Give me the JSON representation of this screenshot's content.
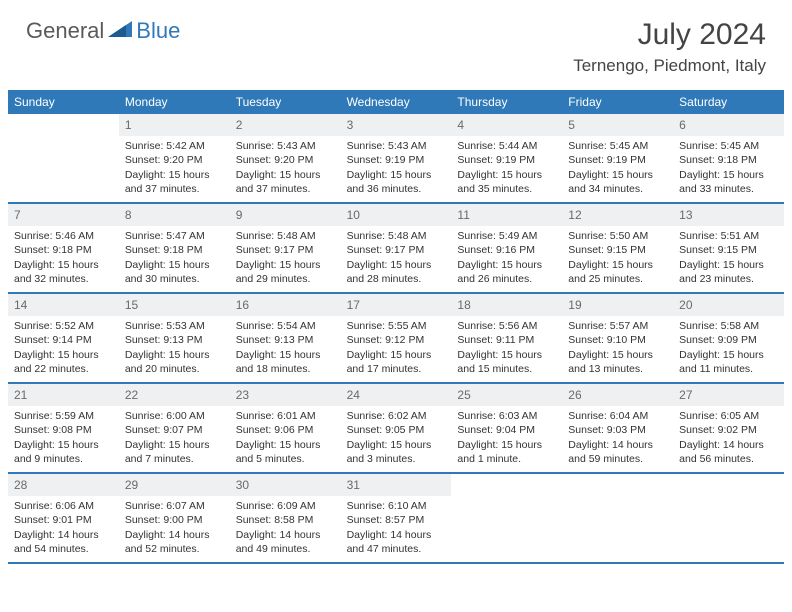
{
  "logo": {
    "general": "General",
    "blue": "Blue"
  },
  "title": "July 2024",
  "location": "Ternengo, Piedmont, Italy",
  "colors": {
    "header_bg": "#2f79b9",
    "header_text": "#ffffff",
    "daynum_bg": "#eef0f2",
    "daynum_text": "#6a6a6a",
    "body_text": "#333333",
    "rule": "#2f79b9"
  },
  "dayNames": [
    "Sunday",
    "Monday",
    "Tuesday",
    "Wednesday",
    "Thursday",
    "Friday",
    "Saturday"
  ],
  "startOffset": 1,
  "days": [
    {
      "n": 1,
      "sunrise": "5:42 AM",
      "sunset": "9:20 PM",
      "daylight": "15 hours and 37 minutes."
    },
    {
      "n": 2,
      "sunrise": "5:43 AM",
      "sunset": "9:20 PM",
      "daylight": "15 hours and 37 minutes."
    },
    {
      "n": 3,
      "sunrise": "5:43 AM",
      "sunset": "9:19 PM",
      "daylight": "15 hours and 36 minutes."
    },
    {
      "n": 4,
      "sunrise": "5:44 AM",
      "sunset": "9:19 PM",
      "daylight": "15 hours and 35 minutes."
    },
    {
      "n": 5,
      "sunrise": "5:45 AM",
      "sunset": "9:19 PM",
      "daylight": "15 hours and 34 minutes."
    },
    {
      "n": 6,
      "sunrise": "5:45 AM",
      "sunset": "9:18 PM",
      "daylight": "15 hours and 33 minutes."
    },
    {
      "n": 7,
      "sunrise": "5:46 AM",
      "sunset": "9:18 PM",
      "daylight": "15 hours and 32 minutes."
    },
    {
      "n": 8,
      "sunrise": "5:47 AM",
      "sunset": "9:18 PM",
      "daylight": "15 hours and 30 minutes."
    },
    {
      "n": 9,
      "sunrise": "5:48 AM",
      "sunset": "9:17 PM",
      "daylight": "15 hours and 29 minutes."
    },
    {
      "n": 10,
      "sunrise": "5:48 AM",
      "sunset": "9:17 PM",
      "daylight": "15 hours and 28 minutes."
    },
    {
      "n": 11,
      "sunrise": "5:49 AM",
      "sunset": "9:16 PM",
      "daylight": "15 hours and 26 minutes."
    },
    {
      "n": 12,
      "sunrise": "5:50 AM",
      "sunset": "9:15 PM",
      "daylight": "15 hours and 25 minutes."
    },
    {
      "n": 13,
      "sunrise": "5:51 AM",
      "sunset": "9:15 PM",
      "daylight": "15 hours and 23 minutes."
    },
    {
      "n": 14,
      "sunrise": "5:52 AM",
      "sunset": "9:14 PM",
      "daylight": "15 hours and 22 minutes."
    },
    {
      "n": 15,
      "sunrise": "5:53 AM",
      "sunset": "9:13 PM",
      "daylight": "15 hours and 20 minutes."
    },
    {
      "n": 16,
      "sunrise": "5:54 AM",
      "sunset": "9:13 PM",
      "daylight": "15 hours and 18 minutes."
    },
    {
      "n": 17,
      "sunrise": "5:55 AM",
      "sunset": "9:12 PM",
      "daylight": "15 hours and 17 minutes."
    },
    {
      "n": 18,
      "sunrise": "5:56 AM",
      "sunset": "9:11 PM",
      "daylight": "15 hours and 15 minutes."
    },
    {
      "n": 19,
      "sunrise": "5:57 AM",
      "sunset": "9:10 PM",
      "daylight": "15 hours and 13 minutes."
    },
    {
      "n": 20,
      "sunrise": "5:58 AM",
      "sunset": "9:09 PM",
      "daylight": "15 hours and 11 minutes."
    },
    {
      "n": 21,
      "sunrise": "5:59 AM",
      "sunset": "9:08 PM",
      "daylight": "15 hours and 9 minutes."
    },
    {
      "n": 22,
      "sunrise": "6:00 AM",
      "sunset": "9:07 PM",
      "daylight": "15 hours and 7 minutes."
    },
    {
      "n": 23,
      "sunrise": "6:01 AM",
      "sunset": "9:06 PM",
      "daylight": "15 hours and 5 minutes."
    },
    {
      "n": 24,
      "sunrise": "6:02 AM",
      "sunset": "9:05 PM",
      "daylight": "15 hours and 3 minutes."
    },
    {
      "n": 25,
      "sunrise": "6:03 AM",
      "sunset": "9:04 PM",
      "daylight": "15 hours and 1 minute."
    },
    {
      "n": 26,
      "sunrise": "6:04 AM",
      "sunset": "9:03 PM",
      "daylight": "14 hours and 59 minutes."
    },
    {
      "n": 27,
      "sunrise": "6:05 AM",
      "sunset": "9:02 PM",
      "daylight": "14 hours and 56 minutes."
    },
    {
      "n": 28,
      "sunrise": "6:06 AM",
      "sunset": "9:01 PM",
      "daylight": "14 hours and 54 minutes."
    },
    {
      "n": 29,
      "sunrise": "6:07 AM",
      "sunset": "9:00 PM",
      "daylight": "14 hours and 52 minutes."
    },
    {
      "n": 30,
      "sunrise": "6:09 AM",
      "sunset": "8:58 PM",
      "daylight": "14 hours and 49 minutes."
    },
    {
      "n": 31,
      "sunrise": "6:10 AM",
      "sunset": "8:57 PM",
      "daylight": "14 hours and 47 minutes."
    }
  ],
  "labels": {
    "sunrise": "Sunrise:",
    "sunset": "Sunset:",
    "daylight": "Daylight:"
  }
}
